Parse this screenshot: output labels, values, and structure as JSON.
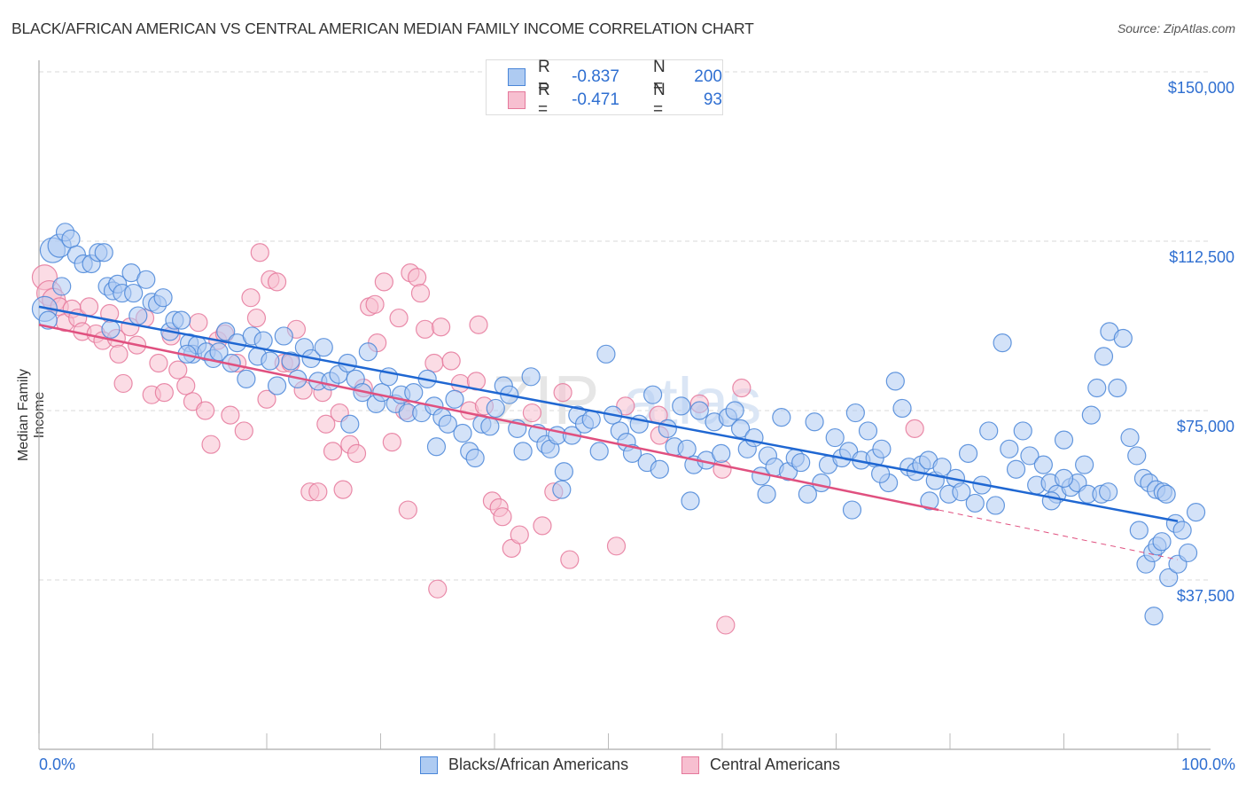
{
  "header": {
    "title": "BLACK/AFRICAN AMERICAN VS CENTRAL AMERICAN MEDIAN FAMILY INCOME CORRELATION CHART",
    "source": "Source: ZipAtlas.com"
  },
  "watermark": "ZIPatlas",
  "stats_legend": [
    {
      "r_label": "R =",
      "r_value": "-0.837",
      "n_label": "N =",
      "n_value": "200"
    },
    {
      "r_label": "R =",
      "r_value": "-0.471",
      "n_label": "N =",
      "n_value": "93"
    }
  ],
  "colors": {
    "blue_fill": "#aecbf2",
    "blue_stroke": "#4a86d8",
    "blue_line": "#1f67d2",
    "pink_fill": "#f7bfd0",
    "pink_stroke": "#e5789b",
    "pink_line": "#e0507f",
    "axis_text": "#2f6fd1"
  },
  "chart_data": {
    "type": "scatter",
    "title": "BLACK/AFRICAN AMERICAN VS CENTRAL AMERICAN MEDIAN FAMILY INCOME CORRELATION CHART",
    "xlabel": "",
    "ylabel": "Median Family Income",
    "xlim": [
      0,
      100
    ],
    "ylim": [
      0,
      155000
    ],
    "x_tick_labels": [
      "0.0%",
      "100.0%"
    ],
    "y_ticks": [
      37500,
      75000,
      112500,
      150000
    ],
    "y_tick_labels": [
      "$37,500",
      "$75,000",
      "$112,500",
      "$150,000"
    ],
    "grid": true,
    "legend_position": "bottom-center",
    "series": [
      {
        "name": "Blacks/African Americans",
        "r": -0.837,
        "n": 200,
        "trend": {
          "x0": 0,
          "y0": 98000,
          "x1": 100,
          "y1": 50500
        },
        "points": [
          [
            0.5,
            97500
          ],
          [
            1.2,
            110500
          ],
          [
            1.8,
            111500
          ],
          [
            2.3,
            114500
          ],
          [
            2.8,
            113000
          ],
          [
            3.3,
            109500
          ],
          [
            3.9,
            107500
          ],
          [
            4.6,
            107500
          ],
          [
            5.2,
            110000
          ],
          [
            5.7,
            110000
          ],
          [
            6.0,
            102500
          ],
          [
            6.5,
            101500
          ],
          [
            6.9,
            103000
          ],
          [
            7.3,
            101000
          ],
          [
            8.1,
            105500
          ],
          [
            8.3,
            101000
          ],
          [
            8.7,
            96000
          ],
          [
            9.4,
            104000
          ],
          [
            9.9,
            99000
          ],
          [
            10.4,
            98500
          ],
          [
            10.9,
            100000
          ],
          [
            11.5,
            92500
          ],
          [
            11.9,
            95000
          ],
          [
            12.5,
            95000
          ],
          [
            13.2,
            90000
          ],
          [
            13.5,
            87500
          ],
          [
            13.9,
            89500
          ],
          [
            14.7,
            88000
          ],
          [
            15.3,
            86500
          ],
          [
            15.8,
            88000
          ],
          [
            16.4,
            92500
          ],
          [
            16.9,
            85500
          ],
          [
            17.4,
            90000
          ],
          [
            18.2,
            82000
          ],
          [
            18.7,
            91500
          ],
          [
            19.2,
            87000
          ],
          [
            19.7,
            90500
          ],
          [
            20.3,
            86000
          ],
          [
            20.9,
            80500
          ],
          [
            21.5,
            91500
          ],
          [
            22.1,
            86000
          ],
          [
            22.7,
            82000
          ],
          [
            23.3,
            89000
          ],
          [
            23.9,
            86500
          ],
          [
            24.5,
            81500
          ],
          [
            25.0,
            89000
          ],
          [
            25.6,
            81500
          ],
          [
            26.3,
            83000
          ],
          [
            27.1,
            85500
          ],
          [
            27.8,
            82000
          ],
          [
            28.4,
            79000
          ],
          [
            28.9,
            88000
          ],
          [
            29.6,
            76500
          ],
          [
            30.1,
            79000
          ],
          [
            30.7,
            82500
          ],
          [
            31.3,
            76500
          ],
          [
            31.8,
            78500
          ],
          [
            32.4,
            74500
          ],
          [
            32.9,
            79000
          ],
          [
            33.6,
            74500
          ],
          [
            34.1,
            82000
          ],
          [
            34.7,
            76000
          ],
          [
            35.4,
            73500
          ],
          [
            35.9,
            72000
          ],
          [
            36.5,
            77500
          ],
          [
            37.2,
            70000
          ],
          [
            37.8,
            66000
          ],
          [
            38.3,
            64500
          ],
          [
            38.9,
            72000
          ],
          [
            39.6,
            71500
          ],
          [
            40.1,
            75500
          ],
          [
            40.8,
            80500
          ],
          [
            41.3,
            78500
          ],
          [
            42.0,
            71000
          ],
          [
            42.5,
            66000
          ],
          [
            43.2,
            82500
          ],
          [
            43.8,
            70000
          ],
          [
            44.5,
            67500
          ],
          [
            44.9,
            66500
          ],
          [
            45.5,
            69500
          ],
          [
            46.1,
            61500
          ],
          [
            46.8,
            69500
          ],
          [
            47.3,
            74000
          ],
          [
            47.9,
            72000
          ],
          [
            48.5,
            73000
          ],
          [
            49.2,
            66000
          ],
          [
            49.8,
            87500
          ],
          [
            50.4,
            74000
          ],
          [
            51.0,
            70500
          ],
          [
            51.6,
            68000
          ],
          [
            52.1,
            65500
          ],
          [
            52.7,
            72000
          ],
          [
            53.4,
            63500
          ],
          [
            53.9,
            78500
          ],
          [
            54.5,
            62000
          ],
          [
            55.2,
            71000
          ],
          [
            55.8,
            67000
          ],
          [
            56.4,
            76000
          ],
          [
            56.9,
            66500
          ],
          [
            57.5,
            63000
          ],
          [
            58.0,
            75000
          ],
          [
            58.6,
            64000
          ],
          [
            59.3,
            72500
          ],
          [
            59.9,
            65500
          ],
          [
            60.5,
            73500
          ],
          [
            61.1,
            75000
          ],
          [
            61.6,
            71000
          ],
          [
            62.2,
            66500
          ],
          [
            62.8,
            69000
          ],
          [
            63.4,
            60500
          ],
          [
            64.0,
            65000
          ],
          [
            64.6,
            62500
          ],
          [
            65.2,
            73500
          ],
          [
            65.8,
            61500
          ],
          [
            66.4,
            64500
          ],
          [
            66.9,
            63500
          ],
          [
            67.5,
            56500
          ],
          [
            68.1,
            72500
          ],
          [
            68.7,
            59000
          ],
          [
            69.3,
            63000
          ],
          [
            69.9,
            69000
          ],
          [
            70.5,
            64500
          ],
          [
            71.1,
            66000
          ],
          [
            71.7,
            74500
          ],
          [
            72.2,
            64000
          ],
          [
            72.8,
            70500
          ],
          [
            73.4,
            64500
          ],
          [
            74.0,
            66500
          ],
          [
            74.6,
            59000
          ],
          [
            75.2,
            81500
          ],
          [
            75.8,
            75500
          ],
          [
            76.4,
            62500
          ],
          [
            77.0,
            61500
          ],
          [
            77.5,
            63000
          ],
          [
            78.1,
            64000
          ],
          [
            78.7,
            59500
          ],
          [
            79.3,
            62500
          ],
          [
            79.9,
            56500
          ],
          [
            80.5,
            60000
          ],
          [
            81.0,
            57000
          ],
          [
            81.6,
            65500
          ],
          [
            82.2,
            54500
          ],
          [
            82.8,
            58500
          ],
          [
            83.4,
            70500
          ],
          [
            84.0,
            54000
          ],
          [
            84.6,
            90000
          ],
          [
            85.2,
            66500
          ],
          [
            85.8,
            62000
          ],
          [
            86.4,
            70500
          ],
          [
            87.0,
            65000
          ],
          [
            87.6,
            58500
          ],
          [
            88.2,
            63000
          ],
          [
            88.8,
            59000
          ],
          [
            89.4,
            56500
          ],
          [
            90.0,
            68500
          ],
          [
            90.6,
            58000
          ],
          [
            91.2,
            59000
          ],
          [
            91.8,
            63000
          ],
          [
            92.4,
            74000
          ],
          [
            92.9,
            80000
          ],
          [
            93.5,
            87000
          ],
          [
            94.0,
            92500
          ],
          [
            94.7,
            80000
          ],
          [
            95.2,
            91000
          ],
          [
            95.8,
            69000
          ],
          [
            96.4,
            65000
          ],
          [
            97.0,
            60000
          ],
          [
            97.5,
            59000
          ],
          [
            98.1,
            57500
          ],
          [
            98.7,
            57000
          ],
          [
            99.0,
            56500
          ],
          [
            0.8,
            95000
          ],
          [
            2.0,
            102500
          ],
          [
            6.3,
            93000
          ],
          [
            13.0,
            87500
          ],
          [
            27.3,
            72000
          ],
          [
            34.9,
            67000
          ],
          [
            45.9,
            57500
          ],
          [
            57.2,
            55000
          ],
          [
            63.9,
            56500
          ],
          [
            71.4,
            53000
          ],
          [
            73.9,
            61000
          ],
          [
            78.2,
            55000
          ],
          [
            88.9,
            55000
          ],
          [
            90.0,
            60000
          ],
          [
            92.1,
            56500
          ],
          [
            93.3,
            56500
          ],
          [
            93.9,
            57000
          ],
          [
            96.6,
            48500
          ],
          [
            97.2,
            41000
          ],
          [
            97.8,
            43500
          ],
          [
            98.2,
            45000
          ],
          [
            98.6,
            46000
          ],
          [
            99.2,
            38000
          ],
          [
            99.8,
            50000
          ],
          [
            100.0,
            41000
          ],
          [
            100.4,
            48500
          ],
          [
            100.9,
            43500
          ],
          [
            101.6,
            52500
          ],
          [
            97.9,
            29500
          ]
        ]
      },
      {
        "name": "Central Americans",
        "r": -0.471,
        "n": 93,
        "trend": {
          "x0": 0,
          "y0": 94000,
          "x1": 79,
          "y1": 53000,
          "dashed_to": {
            "x": 100,
            "y": 42000
          }
        },
        "points": [
          [
            0.5,
            104500
          ],
          [
            0.9,
            101000
          ],
          [
            1.3,
            99500
          ],
          [
            1.8,
            98000
          ],
          [
            2.3,
            94500
          ],
          [
            2.9,
            97500
          ],
          [
            3.4,
            95500
          ],
          [
            3.8,
            92500
          ],
          [
            4.4,
            98000
          ],
          [
            5.0,
            92000
          ],
          [
            5.6,
            90500
          ],
          [
            6.2,
            96500
          ],
          [
            6.8,
            91000
          ],
          [
            7.0,
            87500
          ],
          [
            7.4,
            81000
          ],
          [
            8.0,
            93500
          ],
          [
            8.6,
            89500
          ],
          [
            9.3,
            95500
          ],
          [
            9.9,
            78500
          ],
          [
            10.5,
            85500
          ],
          [
            11.0,
            79000
          ],
          [
            11.6,
            91500
          ],
          [
            12.2,
            84000
          ],
          [
            12.9,
            80500
          ],
          [
            13.5,
            77000
          ],
          [
            14.0,
            94500
          ],
          [
            14.6,
            75000
          ],
          [
            15.1,
            67500
          ],
          [
            15.7,
            90500
          ],
          [
            16.3,
            92000
          ],
          [
            16.8,
            74000
          ],
          [
            17.4,
            85500
          ],
          [
            18.0,
            70500
          ],
          [
            18.6,
            100000
          ],
          [
            19.1,
            95500
          ],
          [
            19.4,
            110000
          ],
          [
            20.0,
            77500
          ],
          [
            20.3,
            104000
          ],
          [
            20.9,
            103500
          ],
          [
            21.5,
            85500
          ],
          [
            22.1,
            85500
          ],
          [
            22.6,
            93000
          ],
          [
            23.2,
            79500
          ],
          [
            23.8,
            57000
          ],
          [
            24.5,
            57000
          ],
          [
            24.9,
            79000
          ],
          [
            25.2,
            72000
          ],
          [
            25.8,
            66000
          ],
          [
            26.4,
            74500
          ],
          [
            26.7,
            57500
          ],
          [
            27.3,
            67500
          ],
          [
            27.9,
            65500
          ],
          [
            28.5,
            80000
          ],
          [
            29.0,
            98000
          ],
          [
            29.5,
            98500
          ],
          [
            29.7,
            90000
          ],
          [
            30.3,
            103500
          ],
          [
            31.0,
            68000
          ],
          [
            31.6,
            95500
          ],
          [
            32.1,
            75000
          ],
          [
            32.4,
            53000
          ],
          [
            32.6,
            105500
          ],
          [
            33.2,
            104500
          ],
          [
            33.5,
            101000
          ],
          [
            33.9,
            93000
          ],
          [
            34.7,
            85500
          ],
          [
            35.0,
            35500
          ],
          [
            35.3,
            93500
          ],
          [
            36.2,
            86000
          ],
          [
            37.0,
            81000
          ],
          [
            37.8,
            75000
          ],
          [
            38.4,
            81500
          ],
          [
            38.6,
            94000
          ],
          [
            39.1,
            76000
          ],
          [
            39.8,
            55000
          ],
          [
            40.4,
            53500
          ],
          [
            40.7,
            51500
          ],
          [
            41.5,
            44500
          ],
          [
            42.2,
            47500
          ],
          [
            43.3,
            74500
          ],
          [
            44.2,
            49500
          ],
          [
            45.2,
            57000
          ],
          [
            46.0,
            79000
          ],
          [
            46.6,
            42000
          ],
          [
            50.7,
            45000
          ],
          [
            51.5,
            76000
          ],
          [
            54.5,
            69500
          ],
          [
            58.0,
            76500
          ],
          [
            60.0,
            62000
          ],
          [
            60.3,
            27500
          ],
          [
            61.7,
            80000
          ],
          [
            76.9,
            71000
          ],
          [
            54.4,
            74000
          ]
        ]
      }
    ]
  },
  "bottom_legend": [
    {
      "label": "Blacks/African Americans"
    },
    {
      "label": "Central Americans"
    }
  ]
}
